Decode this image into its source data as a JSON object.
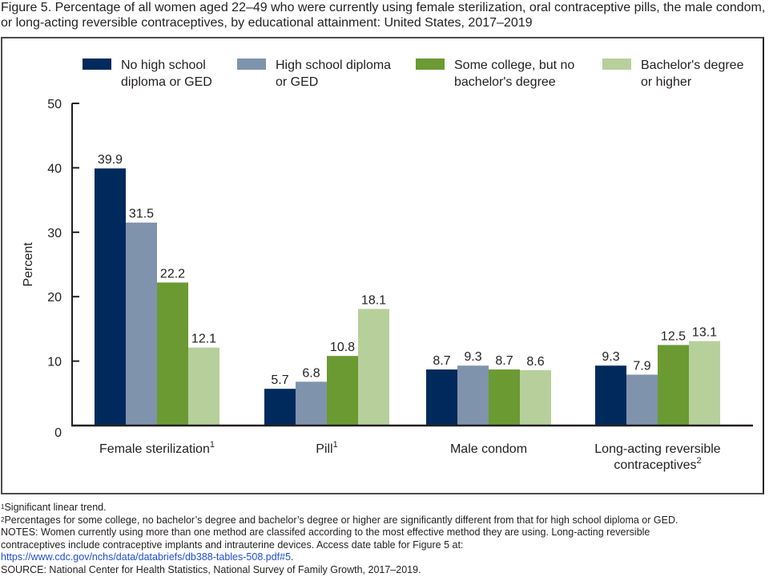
{
  "title": "Figure 5. Percentage of all women aged 22–49 who were currently using female sterilization, oral contraceptive pills, the male condom, or long-acting reversible contraceptives, by educational attainment: United States, 2017–2019",
  "chart_data": {
    "type": "bar",
    "title": "Figure 5. Percentage of all women aged 22–49 who were currently using female sterilization, oral contraceptive pills, the male condom, or long-acting reversible contraceptives, by educational attainment: United States, 2017–2019",
    "xlabel": "",
    "ylabel": "Percent",
    "ylim": [
      0,
      50
    ],
    "yticks": [
      0,
      10,
      20,
      30,
      40,
      50
    ],
    "grid": false,
    "legend_position": "top",
    "categories": [
      {
        "label": "Female sterilization",
        "superscript": "1"
      },
      {
        "label": "Pill",
        "superscript": "1"
      },
      {
        "label": "Male condom",
        "superscript": ""
      },
      {
        "label": "Long-acting reversible\ncontraceptives",
        "superscript": "2"
      }
    ],
    "series": [
      {
        "name": "No high school diploma or GED",
        "legend_lines": [
          "No high school",
          "diploma or GED"
        ],
        "color": "#002a5c",
        "values": [
          39.9,
          5.7,
          8.7,
          9.3
        ]
      },
      {
        "name": "High school diploma or GED",
        "legend_lines": [
          "High school diploma",
          "or GED"
        ],
        "color": "#8093ad",
        "values": [
          31.5,
          6.8,
          9.3,
          7.9
        ]
      },
      {
        "name": "Some college, but no bachelor's degree",
        "legend_lines": [
          "Some college, but no",
          "bachelor's degree"
        ],
        "color": "#6b9a33",
        "values": [
          22.2,
          10.8,
          8.7,
          12.5
        ]
      },
      {
        "name": "Bachelor's degree or higher",
        "legend_lines": [
          "Bachelor's degree",
          "or higher"
        ],
        "color": "#b7d09b",
        "values": [
          12.1,
          18.1,
          8.6,
          13.1
        ]
      }
    ]
  },
  "notes": {
    "footnote1": {
      "sup": "1",
      "text": "Significant linear trend."
    },
    "footnote2": {
      "sup": "2",
      "text": "Percentages for some college, no bachelor’s degree and bachelor’s degree or higher are significantly different from that for high school diploma or GED."
    },
    "notes_line1": "NOTES: Women currently using more than one method are classifed according to the most effective method they are using. Long-acting reversible",
    "notes_line2": "contraceptives include contraceptive implants and intrauterine devices. Access date table for Figure 5 at:",
    "link": "https://www.cdc.gov/nchs/data/databriefs/db388-tables-508.pdf#5",
    "link_suffix": ".",
    "source": "SOURCE: National Center for Health Statistics, National Survey of Family Growth, 2017–2019."
  }
}
